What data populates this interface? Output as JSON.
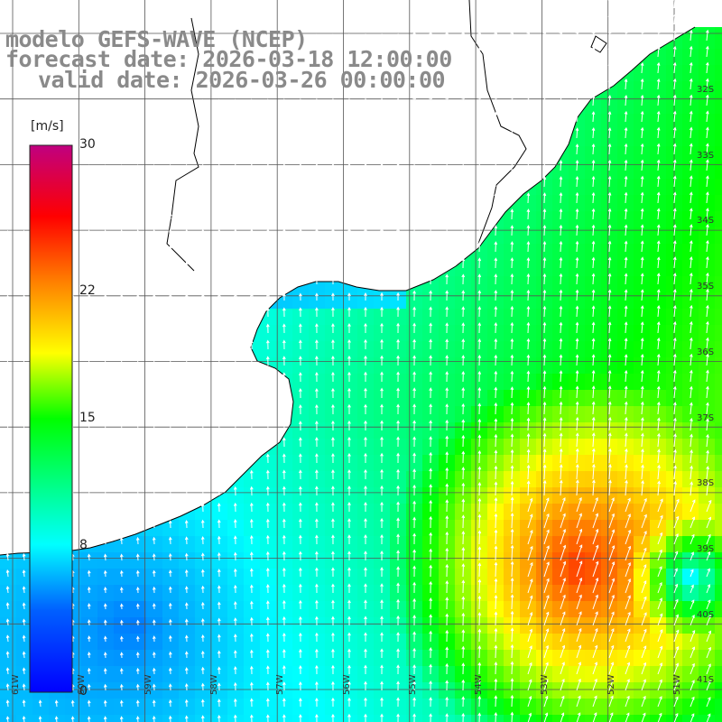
{
  "titles": {
    "line1": "modelo GEFS-WAVE (NCEP)",
    "line2": "forecast date: 2026-03-18 12:00:00",
    "line3": "valid date: 2026-03-26 00:00:00"
  },
  "colorbar": {
    "unit": "[m/s]",
    "min": 0,
    "max": 30,
    "ticks": [
      "0",
      "8",
      "15",
      "22",
      "30"
    ],
    "tick_values": [
      0,
      8,
      15,
      22,
      30
    ],
    "colors": [
      "#0000ff",
      "#00a0ff",
      "#00ffff",
      "#00ff00",
      "#ffff00",
      "#ff8000",
      "#ff0000",
      "#c00080"
    ]
  },
  "axes": {
    "lat_labels": [
      "32S",
      "33S",
      "34S",
      "35S",
      "36S",
      "37S",
      "38S",
      "39S",
      "40S",
      "41S"
    ],
    "lon_labels": [
      "61W",
      "60W",
      "59W",
      "58W",
      "57W",
      "56W",
      "55W",
      "54W",
      "53W",
      "52W",
      "51W"
    ]
  },
  "colors": {
    "land": "#ffffff",
    "coast": "#000000",
    "grid": "#555555",
    "arrows": "#ffffff"
  }
}
